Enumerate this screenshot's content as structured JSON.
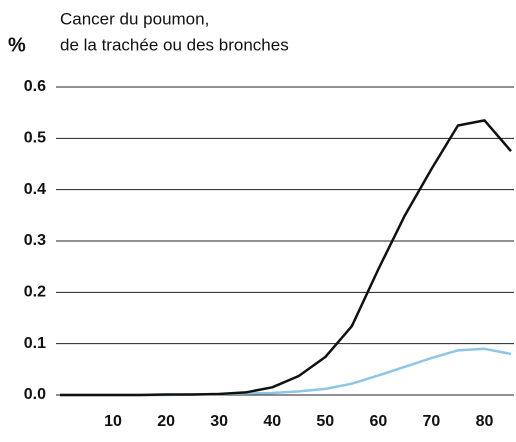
{
  "chart_data": {
    "type": "line",
    "title_lines": [
      "Cancer du poumon,",
      "de la trachée ou des bronches"
    ],
    "y_label": "%",
    "x": [
      0,
      5,
      10,
      15,
      20,
      25,
      30,
      35,
      40,
      45,
      50,
      55,
      60,
      65,
      70,
      75,
      80,
      85
    ],
    "series": [
      {
        "color": "#111111",
        "values": [
          0,
          0,
          0,
          0,
          0.001,
          0.001,
          0.002,
          0.005,
          0.015,
          0.037,
          0.074,
          0.134,
          0.245,
          0.35,
          0.44,
          0.525,
          0.535,
          0.475
        ]
      },
      {
        "color": "#8ec6e6",
        "values": [
          0,
          0,
          0,
          0,
          0,
          0.001,
          0.002,
          0.003,
          0.004,
          0.007,
          0.012,
          0.022,
          0.038,
          0.055,
          0.072,
          0.087,
          0.09,
          0.08
        ]
      }
    ],
    "xlim": [
      0,
      85
    ],
    "xticks": [
      10,
      20,
      30,
      40,
      50,
      60,
      70,
      80
    ],
    "ylim": [
      0,
      0.6
    ],
    "yticks": [
      {
        "value": 0,
        "label": "0.0"
      },
      0.1,
      0.2,
      0.3,
      0.4,
      0.5,
      0.6
    ],
    "grid": true
  }
}
